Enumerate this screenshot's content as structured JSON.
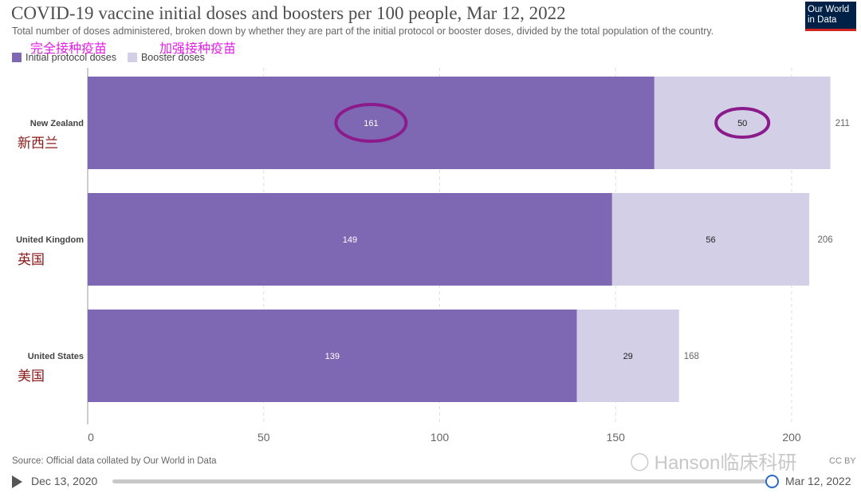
{
  "header": {
    "title": "COVID-19 vaccine initial doses and boosters per 100 people, Mar 12, 2022",
    "subtitle": "Total number of doses administered, broken down by whether they are part of the initial protocol or booster doses, divided by the total population of the country.",
    "logo_line1": "Our World",
    "logo_line2": "in Data"
  },
  "annotations": {
    "initial_cn": "完全接种疫苗",
    "booster_cn": "加强接种疫苗",
    "highlight_color": "#8b1a8b"
  },
  "legend": {
    "initial": "Initial protocol doses",
    "booster": "Booster doses"
  },
  "colors": {
    "initial": "#7f68b3",
    "booster": "#d2cfe6",
    "cn_label": "#8b1a1a",
    "cn_anno": "#e21ee5"
  },
  "chart_data": {
    "type": "bar",
    "orientation": "horizontal",
    "stacked": true,
    "title": "COVID-19 vaccine initial doses and boosters per 100 people, Mar 12, 2022",
    "categories": [
      "New Zealand",
      "United Kingdom",
      "United States"
    ],
    "categories_cn": [
      "新西兰",
      "英国",
      "美国"
    ],
    "series": [
      {
        "name": "Initial protocol doses",
        "values": [
          161,
          149,
          139
        ]
      },
      {
        "name": "Booster doses",
        "values": [
          50,
          56,
          29
        ]
      }
    ],
    "totals": [
      211,
      206,
      168
    ],
    "xlim": [
      0,
      211
    ],
    "xticks": [
      0,
      50,
      100,
      150,
      200
    ],
    "grid": true,
    "legend_position": "top-left"
  },
  "footer": {
    "source": "Source: Official data collated by Our World in Data",
    "license": "CC BY",
    "watermark": "Hanson临床科研",
    "timeline_start": "Dec 13, 2020",
    "timeline_end": "Mar 12, 2022"
  }
}
